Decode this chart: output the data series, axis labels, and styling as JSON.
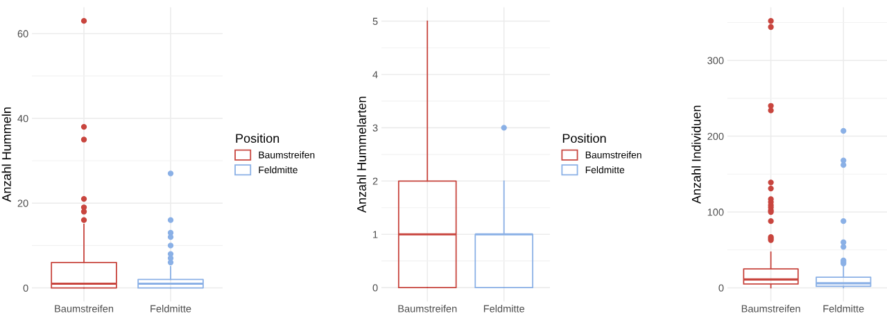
{
  "chart_data": [
    {
      "type": "box",
      "ylabel": "Anzahl Hummeln",
      "categories": [
        "Baumstreifen",
        "Feldmitte"
      ],
      "legend_title": "Position",
      "legend": "right",
      "grid": true,
      "ylim": [
        -3.2,
        66.2
      ],
      "yticks": [
        0,
        {
          "value": 10,
          "label": null
        },
        20,
        {
          "value": 30,
          "label": null
        },
        40,
        {
          "value": 50,
          "label": null
        },
        60
      ],
      "series": [
        {
          "name": "Baumstreifen",
          "color": "#c8453e",
          "boxes": [
            {
              "low": 0,
              "q1": 0,
              "median": 1,
              "q3": 6,
              "high": 15,
              "outliers": [
                63,
                38,
                35,
                21,
                19,
                18,
                16
              ]
            },
            null
          ]
        },
        {
          "name": "Feldmitte",
          "color": "#8ab0e6",
          "boxes": [
            null,
            {
              "low": 0,
              "q1": 0,
              "median": 1,
              "q3": 2,
              "high": 5,
              "outliers": [
                27,
                16,
                13,
                12,
                10,
                8,
                7,
                6
              ]
            }
          ]
        }
      ]
    },
    {
      "type": "box",
      "ylabel": "Anzahl Hummelarten",
      "categories": [
        "Baumstreifen",
        "Feldmitte"
      ],
      "legend_title": "Position",
      "legend": "right",
      "grid": true,
      "ylim": [
        -0.26,
        5.26
      ],
      "yticks": [
        0,
        {
          "value": 0.5,
          "label": null
        },
        1,
        {
          "value": 1.5,
          "label": null
        },
        2,
        {
          "value": 2.5,
          "label": null
        },
        3,
        {
          "value": 3.5,
          "label": null
        },
        4,
        {
          "value": 4.5,
          "label": null
        },
        5
      ],
      "series": [
        {
          "name": "Baumstreifen",
          "color": "#c8453e",
          "boxes": [
            {
              "low": 0,
              "q1": 0,
              "median": 1,
              "q3": 2,
              "high": 5
            },
            null
          ]
        },
        {
          "name": "Feldmitte",
          "color": "#8ab0e6",
          "boxes": [
            null,
            {
              "low": 0,
              "q1": 0,
              "median": 1,
              "q3": 1,
              "high": 2,
              "outliers": [
                3
              ]
            }
          ]
        }
      ]
    },
    {
      "type": "box",
      "ylabel": "Anzahl Individuen",
      "categories": [
        "Baumstreifen",
        "Feldmitte"
      ],
      "grid": true,
      "ylim": [
        -18,
        370
      ],
      "yticks": [
        0,
        {
          "value": 50,
          "label": null
        },
        100,
        {
          "value": 150,
          "label": null
        },
        200,
        {
          "value": 250,
          "label": null
        },
        300,
        {
          "value": 350,
          "label": null
        }
      ],
      "series": [
        {
          "color": "#c8453e",
          "boxes": [
            {
              "low": 0,
              "q1": 5,
              "median": 11,
              "q3": 25,
              "high": 47,
              "outliers": [
                352,
                344,
                240,
                234,
                139,
                131,
                117,
                113,
                109,
                106,
                102,
                100,
                88,
                67,
                65,
                63
              ]
            },
            null
          ]
        },
        {
          "color": "#8ab0e6",
          "boxes": [
            null,
            {
              "low": 0,
              "q1": 2,
              "median": 6,
              "q3": 14,
              "high": 28,
              "outliers": [
                207,
                168,
                162,
                88,
                60,
                54,
                36,
                34,
                32
              ]
            }
          ]
        }
      ]
    }
  ]
}
